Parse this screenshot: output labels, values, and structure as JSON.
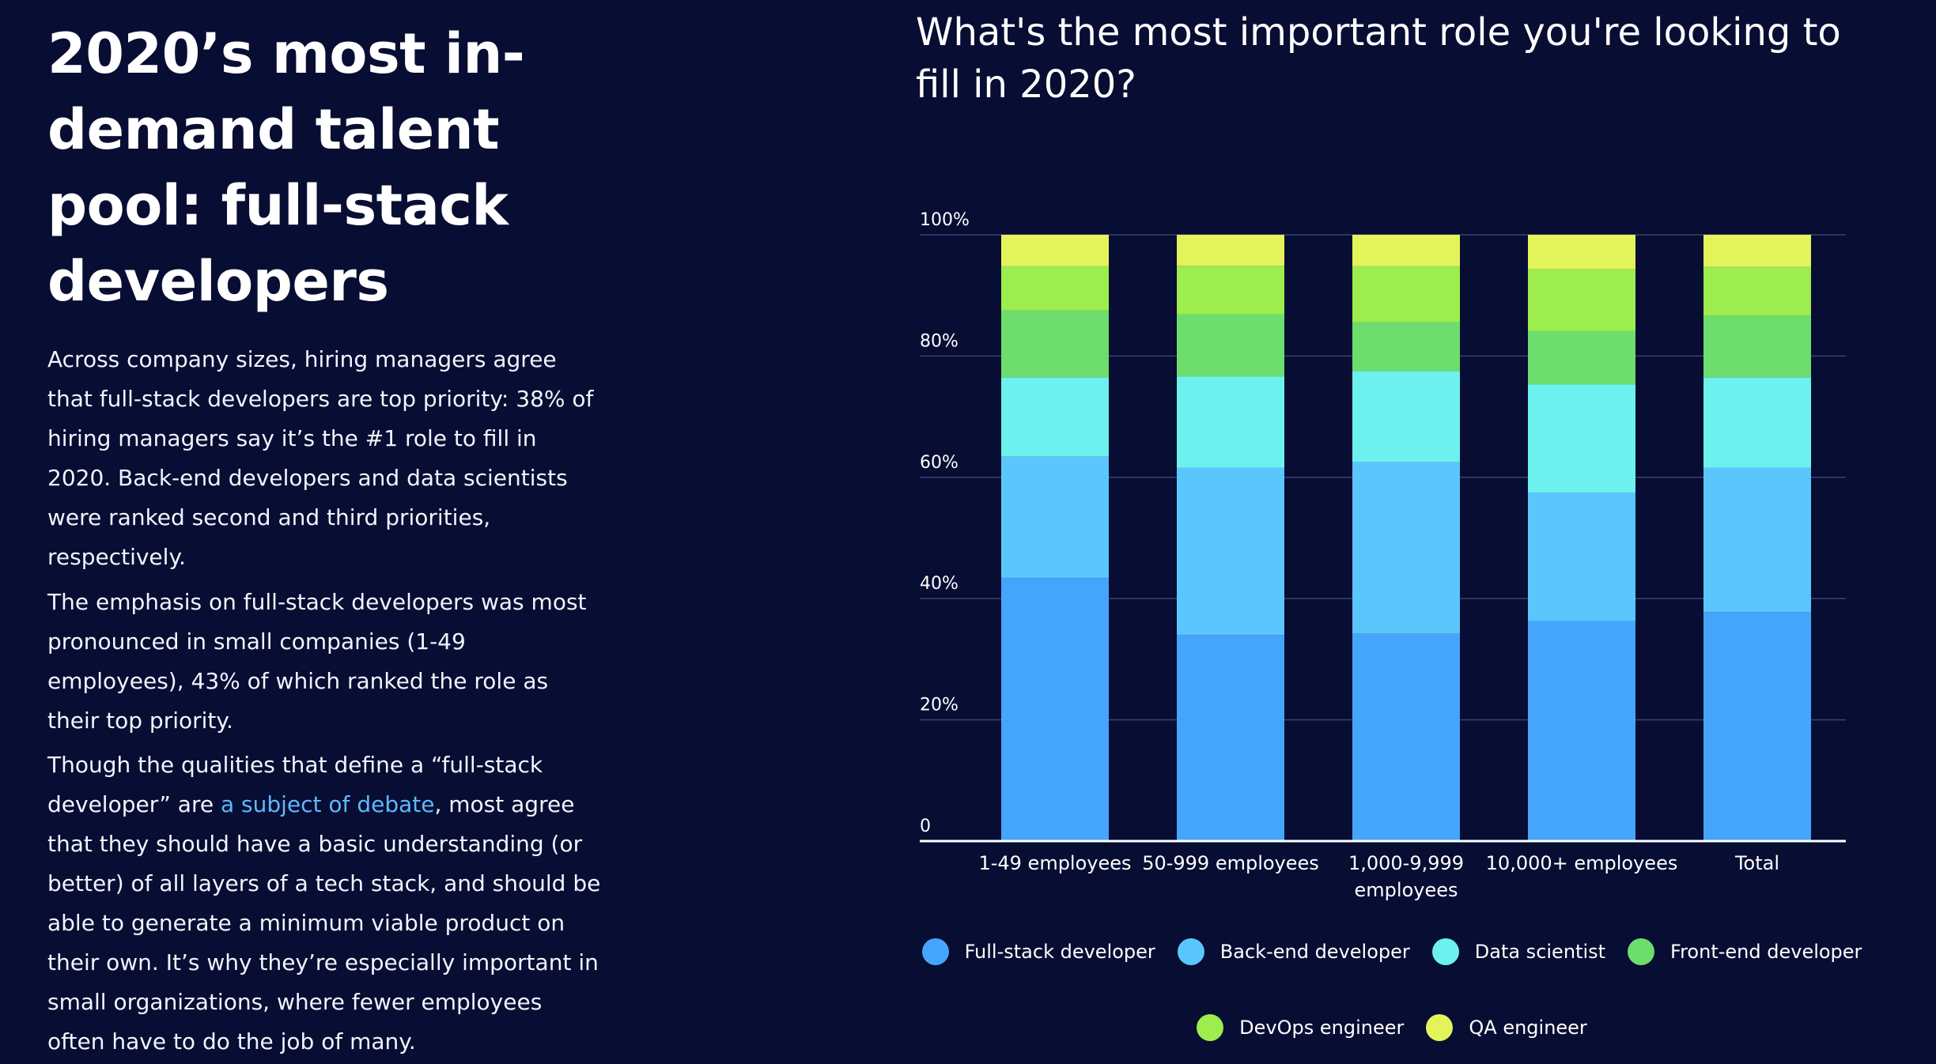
{
  "article": {
    "headline": "2020’s most in-demand talent pool: full-stack developers",
    "para1": "Across company sizes, hiring managers agree that full-stack developers are top priority: 38% of hiring managers say it’s the #1 role to fill in 2020. Back-end developers and data scientists were ranked second and third priorities, respectively.",
    "para2": "The emphasis on full-stack developers was most pronounced in small companies (1-49 employees), 43% of which ranked the role as their top priority.",
    "para3_before": "Though the qualities that define a “full-stack developer” are ",
    "para3_link": "a subject of debate",
    "para3_after": ", most agree that they should have a basic understanding (or better) of all layers of a tech stack, and should be able to generate a minimum viable product on their own. It’s why they’re especially important in small organizations, where fewer employees often have to do the job of many."
  },
  "chart_data": {
    "type": "bar",
    "stacked": true,
    "title": "What's the most important role you're looking to fill in 2020?",
    "categories": [
      "1-49 employees",
      "50-999 employees",
      "1,000-9,999 employees",
      "10,000+ employees",
      "Total"
    ],
    "yticks": [
      "0",
      "20%",
      "40%",
      "60%",
      "80%",
      "100%"
    ],
    "ylim": [
      0,
      100
    ],
    "grid": true,
    "legend_position": "bottom",
    "series": [
      {
        "name": "Full-stack developer",
        "color": "#45a5fa",
        "values": [
          43.4,
          34.0,
          34.2,
          36.3,
          37.8
        ]
      },
      {
        "name": "Back-end developer",
        "color": "#5bc6fb",
        "values": [
          20.0,
          27.6,
          28.3,
          21.2,
          23.8
        ]
      },
      {
        "name": "Data scientist",
        "color": "#6df1ef",
        "values": [
          13.1,
          15.0,
          15.0,
          17.8,
          14.9
        ]
      },
      {
        "name": "Front-end developer",
        "color": "#6ddd6d",
        "values": [
          11.0,
          10.3,
          8.1,
          8.8,
          10.1
        ]
      },
      {
        "name": "DevOps engineer",
        "color": "#9ced4d",
        "values": [
          7.3,
          8.0,
          9.2,
          10.2,
          8.1
        ]
      },
      {
        "name": "QA engineer",
        "color": "#e3f45b",
        "values": [
          5.2,
          5.1,
          5.2,
          5.7,
          5.3
        ]
      }
    ]
  }
}
